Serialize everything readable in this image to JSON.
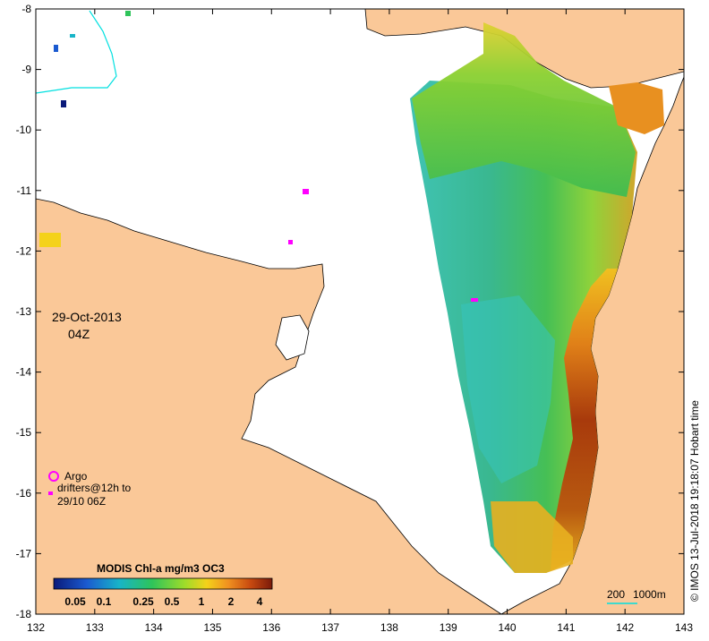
{
  "map": {
    "date": "29-Oct-2013",
    "time": "04Z",
    "product_label": "MODIS Chl-a mg/m3 OC3",
    "colorbar_ticks": [
      "0.05",
      "0.1",
      "0.25",
      "0.5",
      "1",
      "2",
      "4"
    ],
    "colorbar_colors": [
      "#0a1a7a",
      "#1a5ad0",
      "#18b4c8",
      "#2ec45a",
      "#9fdc2a",
      "#f4d21a",
      "#f09020",
      "#c84a10",
      "#7a1a0a"
    ],
    "legend": {
      "argo_label": "Argo",
      "drifters_line1": "drifters@12h to",
      "drifters_line2": "29/10 06Z",
      "argo_color": "#ff00ff"
    },
    "scale_bar_labels": [
      "200",
      "1000m"
    ],
    "credit": "© IMOS 13-Jul-2018 19:18:07 Hobart time",
    "x_ticks": [
      "132",
      "133",
      "134",
      "135",
      "136",
      "137",
      "138",
      "139",
      "140",
      "141",
      "142",
      "143"
    ],
    "y_ticks": [
      "-8",
      "-9",
      "-10",
      "-11",
      "-12",
      "-13",
      "-14",
      "-15",
      "-16",
      "-17",
      "-18"
    ],
    "colors": {
      "land": "#fac898",
      "water": "#ffffff",
      "coast": "#000000",
      "contour": "#00e0e0"
    }
  }
}
